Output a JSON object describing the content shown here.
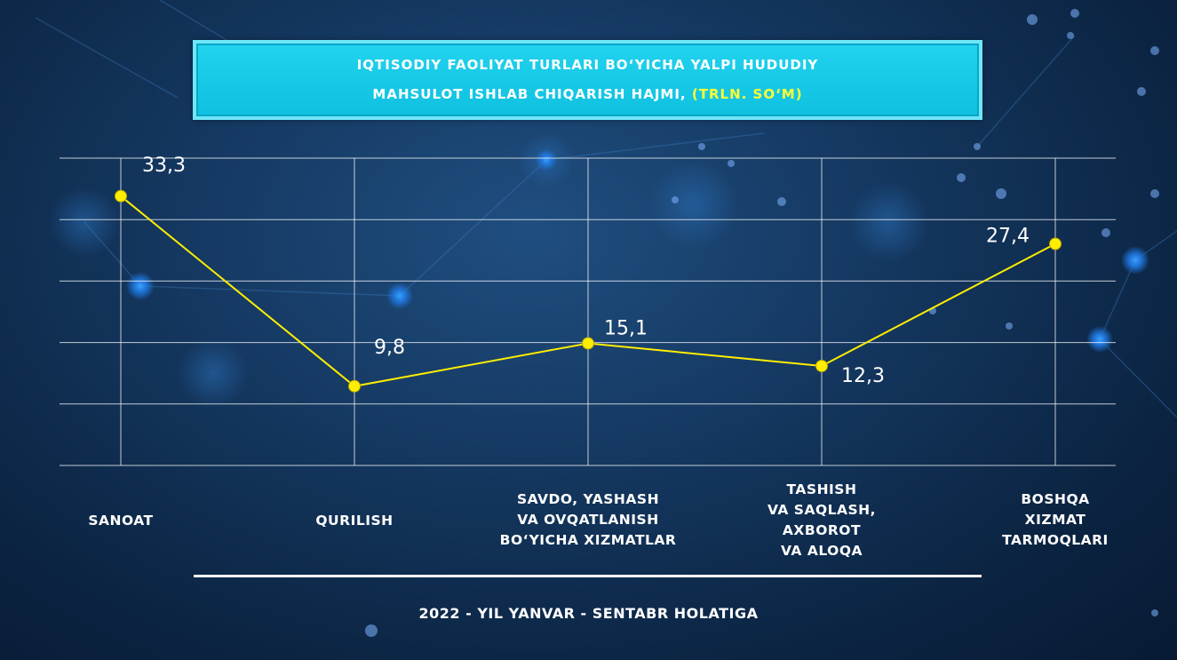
{
  "title": {
    "line1": "IQTISODIY FAOLIYAT TURLARI BO‘YICHA YALPI HUDUDIY",
    "line2": "MAHSULOT ISHLAB CHIQARISH HAJMI,",
    "unit": "(TRLN. SO‘M)"
  },
  "footer": "2022 - YIL YANVAR - SENTABR HOLATIGA",
  "colors": {
    "line": "#ffee00",
    "point": "#ffee00",
    "grid": "#ffffff",
    "title_bg": "#1ccbe6",
    "unit_text": "#ffff33"
  },
  "chart_data": {
    "type": "line",
    "categories": [
      [
        "SANOAT"
      ],
      [
        "QURILISH"
      ],
      [
        "SAVDO, YASHASH",
        "VA OVQATLANISH",
        "BO‘YICHA XIZMATLAR"
      ],
      [
        "TASHISH",
        "VA SAQLASH,",
        "AXBOROT",
        "VA ALOQA"
      ],
      [
        "BOSHQA",
        "XIZMAT",
        "TARMOQLARI"
      ]
    ],
    "values": [
      33.3,
      9.8,
      15.1,
      12.3,
      27.4
    ],
    "value_labels": [
      "33,3",
      "9,8",
      "15,1",
      "12,3",
      "27,4"
    ],
    "title": "IQTISODIY FAOLIYAT TURLARI BO‘YICHA YALPI HUDUDIY MAHSULOT ISHLAB CHIQARISH HAJMI, (TRLN. SO‘M)",
    "xlabel": "",
    "ylabel": "",
    "ylim": [
      0,
      38
    ],
    "grid": true,
    "legend": "none"
  }
}
